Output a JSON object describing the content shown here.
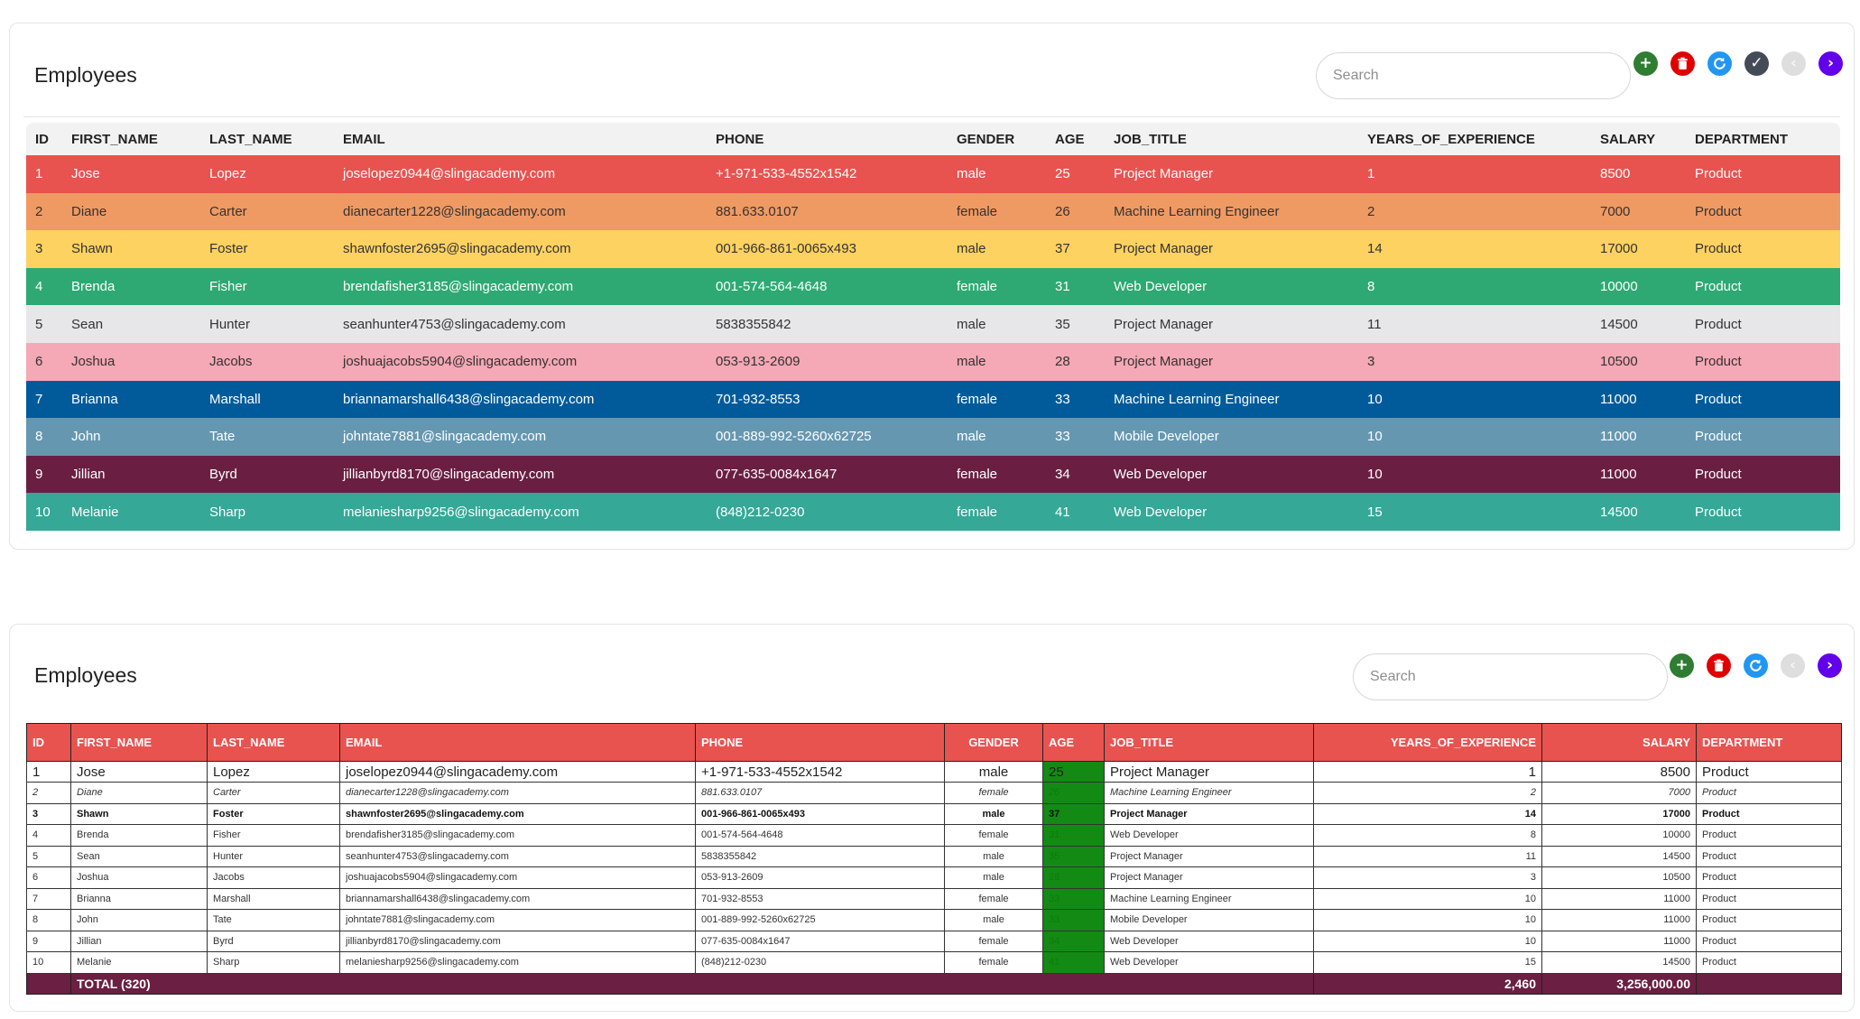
{
  "colors": {
    "row_colors": [
      "#e8534f",
      "#f09a63",
      "#fdd261",
      "#2ea973",
      "#e7e7e9",
      "#f5a8b5",
      "#015b9a",
      "#6597b1",
      "#6a1f42",
      "#35a897"
    ],
    "row_text": [
      "#ffffff",
      "#333333",
      "#333333",
      "#ffffff",
      "#333333",
      "#333333",
      "#ffffff",
      "#ffffff",
      "#ffffff",
      "#ffffff"
    ],
    "row_bold": [
      false,
      false,
      false,
      true,
      false,
      false,
      true,
      true,
      true,
      false
    ],
    "header_red": "#e8534f",
    "footer": "#6b1f42",
    "age_green": "#138a14"
  },
  "card1": {
    "title": "Employees",
    "search_placeholder": "Search",
    "buttons": [
      {
        "name": "add-button",
        "icon": "plus-icon",
        "color": "#2e7d32",
        "glyph": "+"
      },
      {
        "name": "delete-button",
        "icon": "trash-icon",
        "color": "#e00000",
        "glyph": "trash"
      },
      {
        "name": "refresh-button",
        "icon": "refresh-icon",
        "color": "#2196f3",
        "glyph": "refresh"
      },
      {
        "name": "save-button",
        "icon": "check-icon",
        "color": "#454b56",
        "glyph": "✓"
      },
      {
        "name": "prev-page-button",
        "icon": "chevron-left-icon",
        "color": "#dedede",
        "glyph": "‹"
      },
      {
        "name": "next-page-button",
        "icon": "chevron-right-icon",
        "color": "#6200ea",
        "glyph": "›"
      }
    ]
  },
  "card2": {
    "title": "Employees",
    "search_placeholder": "Search",
    "buttons": [
      {
        "name": "add-button",
        "icon": "plus-icon",
        "color": "#2e7d32",
        "glyph": "+"
      },
      {
        "name": "delete-button",
        "icon": "trash-icon",
        "color": "#e00000",
        "glyph": "trash"
      },
      {
        "name": "refresh-button",
        "icon": "refresh-icon",
        "color": "#2196f3",
        "glyph": "refresh"
      },
      {
        "name": "prev-page-button",
        "icon": "chevron-left-icon",
        "color": "#dedede",
        "glyph": "‹"
      },
      {
        "name": "next-page-button",
        "icon": "chevron-right-icon",
        "color": "#6200ea",
        "glyph": "›"
      }
    ],
    "footer": {
      "label": "TOTAL (320)",
      "years_total": "2,460",
      "salary_total": "3,256,000.00"
    }
  },
  "columns": [
    "ID",
    "FIRST_NAME",
    "LAST_NAME",
    "EMAIL",
    "PHONE",
    "GENDER",
    "AGE",
    "JOB_TITLE",
    "YEARS_OF_EXPERIENCE",
    "SALARY",
    "DEPARTMENT"
  ],
  "rows": [
    [
      "1",
      "Jose",
      "Lopez",
      "joselopez0944@slingacademy.com",
      "+1-971-533-4552x1542",
      "male",
      "25",
      "Project Manager",
      "1",
      "8500",
      "Product"
    ],
    [
      "2",
      "Diane",
      "Carter",
      "dianecarter1228@slingacademy.com",
      "881.633.0107",
      "female",
      "26",
      "Machine Learning Engineer",
      "2",
      "7000",
      "Product"
    ],
    [
      "3",
      "Shawn",
      "Foster",
      "shawnfoster2695@slingacademy.com",
      "001-966-861-0065x493",
      "male",
      "37",
      "Project Manager",
      "14",
      "17000",
      "Product"
    ],
    [
      "4",
      "Brenda",
      "Fisher",
      "brendafisher3185@slingacademy.com",
      "001-574-564-4648",
      "female",
      "31",
      "Web Developer",
      "8",
      "10000",
      "Product"
    ],
    [
      "5",
      "Sean",
      "Hunter",
      "seanhunter4753@slingacademy.com",
      "5838355842",
      "male",
      "35",
      "Project Manager",
      "11",
      "14500",
      "Product"
    ],
    [
      "6",
      "Joshua",
      "Jacobs",
      "joshuajacobs5904@slingacademy.com",
      "053-913-2609",
      "male",
      "28",
      "Project Manager",
      "3",
      "10500",
      "Product"
    ],
    [
      "7",
      "Brianna",
      "Marshall",
      "briannamarshall6438@slingacademy.com",
      "701-932-8553",
      "female",
      "33",
      "Machine Learning Engineer",
      "10",
      "11000",
      "Product"
    ],
    [
      "8",
      "John",
      "Tate",
      "johntate7881@slingacademy.com",
      "001-889-992-5260x62725",
      "male",
      "33",
      "Mobile Developer",
      "10",
      "11000",
      "Product"
    ],
    [
      "9",
      "Jillian",
      "Byrd",
      "jillianbyrd8170@slingacademy.com",
      "077-635-0084x1647",
      "female",
      "34",
      "Web Developer",
      "10",
      "11000",
      "Product"
    ],
    [
      "10",
      "Melanie",
      "Sharp",
      "melaniesharp9256@slingacademy.com",
      "(848)212-0230",
      "female",
      "41",
      "Web Developer",
      "15",
      "14500",
      "Product"
    ]
  ]
}
